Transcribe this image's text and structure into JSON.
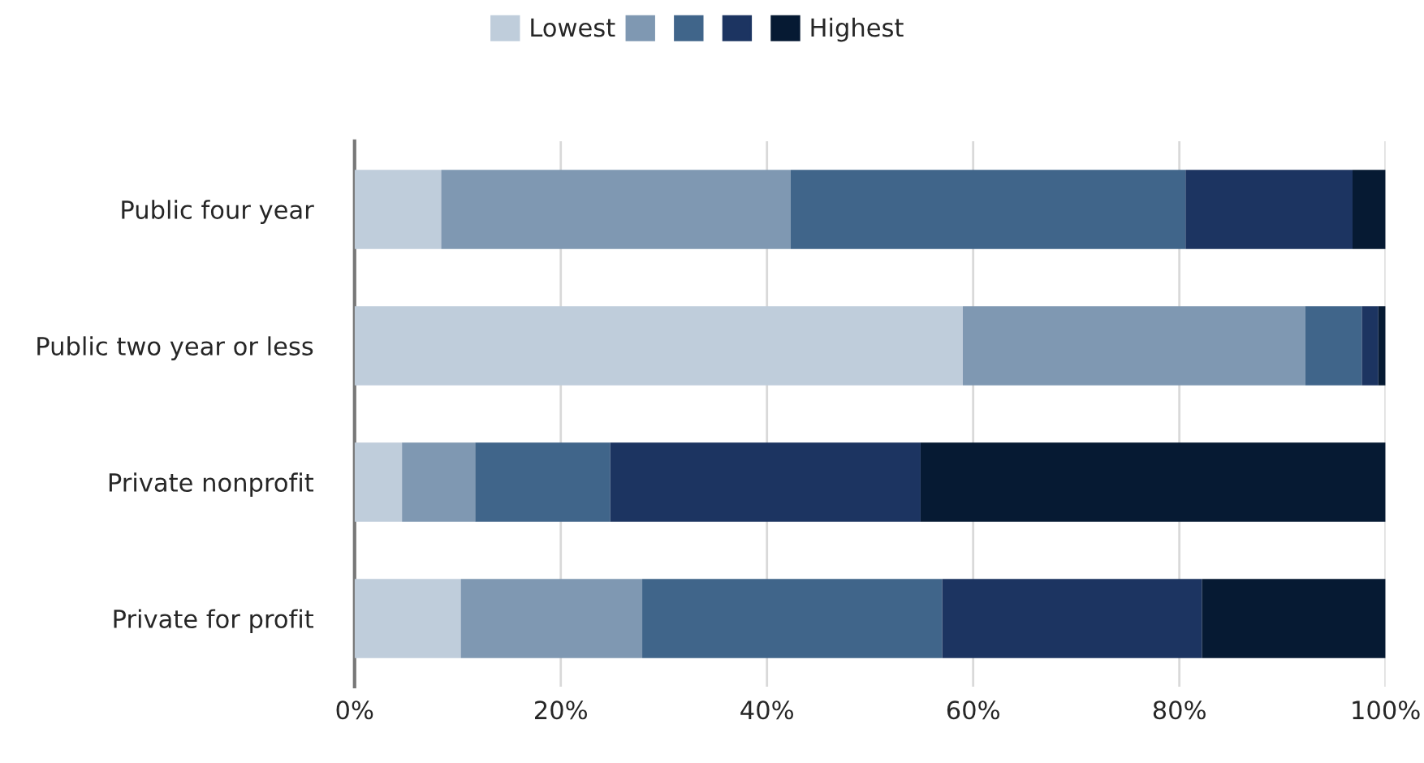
{
  "chart_data": {
    "type": "bar",
    "orientation": "horizontal",
    "stacked": true,
    "categories": [
      "Public four year",
      "Public two year or less",
      "Private nonprofit",
      "Private for profit"
    ],
    "series": [
      {
        "name": "Lowest",
        "color": "#bfcddb",
        "values": [
          8.4,
          59.0,
          4.6,
          10.3
        ]
      },
      {
        "color": "#7f98b2",
        "values": [
          33.9,
          33.2,
          7.1,
          17.6
        ]
      },
      {
        "color": "#40658a",
        "values": [
          38.3,
          5.5,
          13.1,
          29.1
        ]
      },
      {
        "color": "#1c3461",
        "values": [
          16.2,
          1.6,
          30.1,
          25.2
        ]
      },
      {
        "name": "Highest",
        "color": "#061a33",
        "values": [
          3.2,
          0.7,
          45.1,
          17.8
        ]
      }
    ],
    "xlim": [
      0,
      100
    ],
    "xticks": [
      {
        "value": 0,
        "label": "0%"
      },
      {
        "value": 20,
        "label": "20%"
      },
      {
        "value": 40,
        "label": "40%"
      },
      {
        "value": 60,
        "label": "60%"
      },
      {
        "value": 80,
        "label": "80%"
      },
      {
        "value": 100,
        "label": "100%"
      }
    ],
    "grid": "x",
    "legend": "top"
  }
}
